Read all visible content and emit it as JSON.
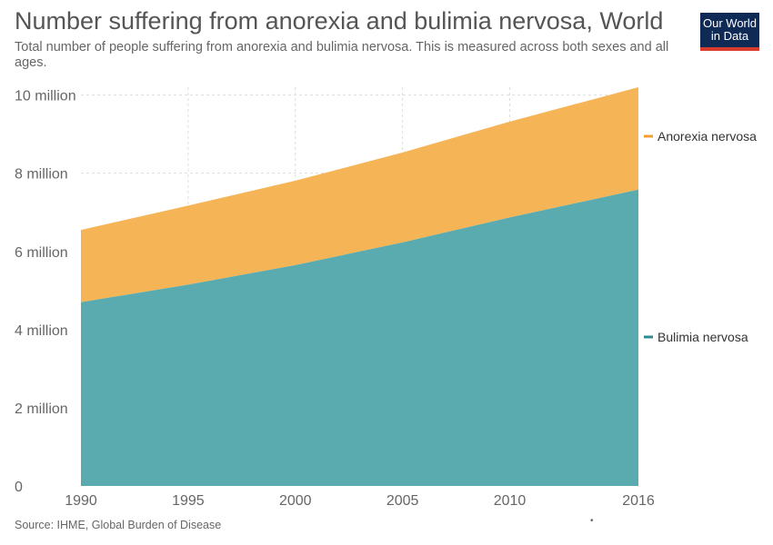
{
  "header": {
    "title": "Number suffering from anorexia and bulimia nervosa, World",
    "subtitle": "Total number of people suffering from anorexia and bulimia nervosa. This is measured across both sexes and all ages.",
    "logo_line1": "Our World",
    "logo_line2": "in Data"
  },
  "footer": {
    "source": "Source: IHME, Global Burden of Disease",
    "dot": "•"
  },
  "colors": {
    "bulimia": "#5aabb0",
    "anorexia": "#f5b557",
    "bulimia_label": "#2e8c91",
    "anorexia_label": "#f0a030",
    "grid": "#dddddd",
    "axis_text": "#666666",
    "logo_bg": "#0f2a55",
    "logo_accent": "#d73c2c"
  },
  "chart_data": {
    "type": "area",
    "stacked": true,
    "title": "Number suffering from anorexia and bulimia nervosa, World",
    "x": [
      1990,
      1995,
      2000,
      2005,
      2010,
      2016
    ],
    "xticks": [
      "1990",
      "1995",
      "2000",
      "2005",
      "2010",
      "2016"
    ],
    "yticks": [
      "0",
      "2 million",
      "4 million",
      "6 million",
      "8 million",
      "10 million"
    ],
    "ytick_values": [
      0,
      2000000,
      4000000,
      6000000,
      8000000,
      10000000
    ],
    "ylim": [
      0,
      10200000
    ],
    "xlim": [
      1990,
      2016
    ],
    "grid": true,
    "legend": "right",
    "series": [
      {
        "name": "Bulimia nervosa",
        "values": [
          4700000,
          5150000,
          5650000,
          6230000,
          6870000,
          7580000
        ]
      },
      {
        "name": "Anorexia nervosa",
        "values": [
          1850000,
          2020000,
          2160000,
          2300000,
          2450000,
          2620000
        ]
      }
    ]
  }
}
